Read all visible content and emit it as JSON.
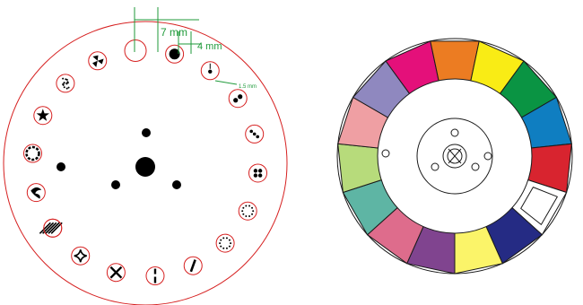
{
  "gobo_wheel": {
    "dimension_labels": {
      "large_opening": "7 mm",
      "gobo_opening": "4 mm",
      "small_dot": "1.5 mm"
    },
    "colors": {
      "outline": "#d62020",
      "dimension": "#1f9a3a",
      "fill": "#000000"
    },
    "gobos": [
      "open",
      "solid-dot",
      "dot-with-line",
      "two-dots",
      "three-dots",
      "four-dots",
      "dotted-ring",
      "dotted-circle",
      "vertical-bar",
      "vertical-split",
      "x-cross",
      "diamond",
      "stripes",
      "swirl",
      "dashed-ring",
      "star",
      "dot-grid",
      "propeller"
    ]
  },
  "color_wheel": {
    "segments": [
      {
        "name": "magenta",
        "color": "#e4107a"
      },
      {
        "name": "orange",
        "color": "#ec7c22"
      },
      {
        "name": "yellow",
        "color": "#f9ec15"
      },
      {
        "name": "green",
        "color": "#0a9443"
      },
      {
        "name": "blue",
        "color": "#0f7ec1"
      },
      {
        "name": "red",
        "color": "#d8242f"
      },
      {
        "name": "open",
        "color": "#ffffff"
      },
      {
        "name": "dark-blue",
        "color": "#252b84"
      },
      {
        "name": "light-yellow",
        "color": "#fbf469"
      },
      {
        "name": "purple",
        "color": "#80448f"
      },
      {
        "name": "pink",
        "color": "#de6c8c"
      },
      {
        "name": "teal",
        "color": "#5eb5a4"
      },
      {
        "name": "light-green",
        "color": "#b7db7b"
      },
      {
        "name": "light-pink",
        "color": "#ef9fa3"
      },
      {
        "name": "lavender",
        "color": "#8f88bf"
      }
    ]
  }
}
